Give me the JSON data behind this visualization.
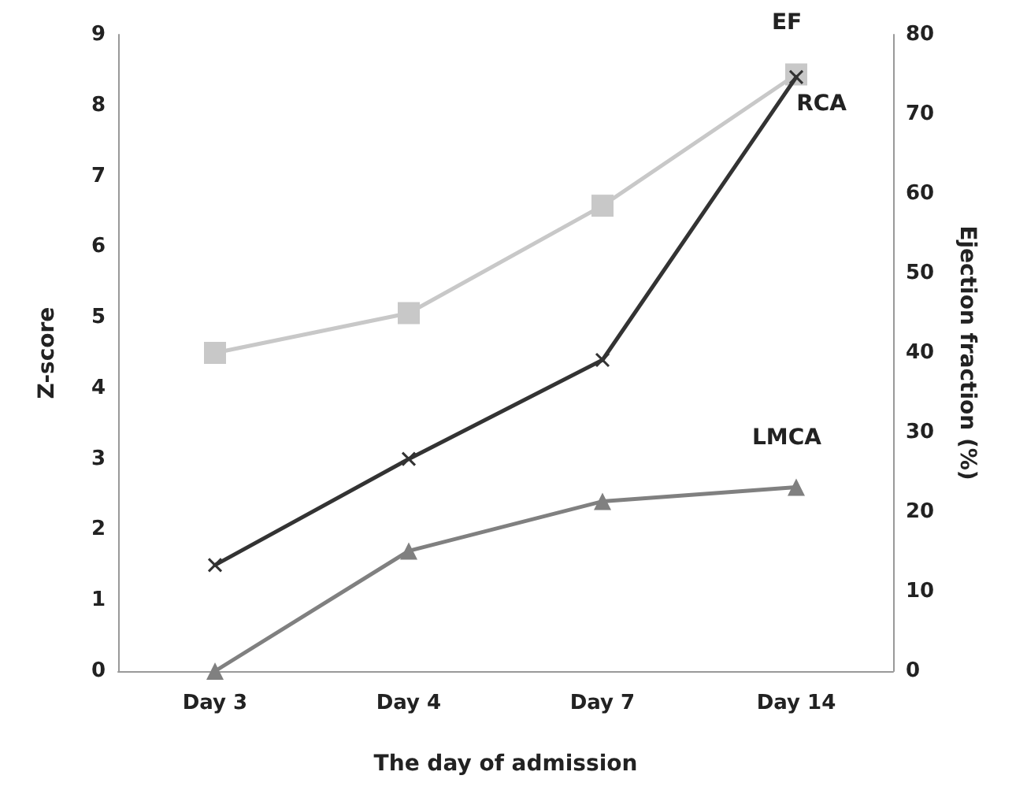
{
  "chart_data": {
    "type": "line",
    "xlabel": "The day of admission",
    "ylabel": "Z-score",
    "y2label": "Ejection fraction (%)",
    "categories": [
      "Day 3",
      "Day 4",
      "Day 7",
      "Day 14"
    ],
    "series": [
      {
        "name": "EF",
        "color": "#c8c8c8",
        "values": [
          40,
          45,
          58.5,
          75
        ],
        "axis": "y2",
        "marker": "square"
      },
      {
        "name": "RCA",
        "color": "#333333",
        "values": [
          1.5,
          3.0,
          4.4,
          8.4
        ],
        "marker": "cross"
      },
      {
        "name": "LMCA",
        "color": "#808080",
        "values": [
          0,
          1.7,
          2.4,
          2.6
        ],
        "marker": "triangle"
      }
    ],
    "ylim": [
      0,
      9
    ],
    "yticks": [
      0,
      1,
      2,
      3,
      4,
      5,
      6,
      7,
      8,
      9
    ],
    "y2lim": [
      0,
      80
    ],
    "y2ticks": [
      0,
      10,
      20,
      30,
      40,
      50,
      60,
      70,
      80
    ],
    "grid": false,
    "legend": false,
    "line_style": "solid"
  }
}
